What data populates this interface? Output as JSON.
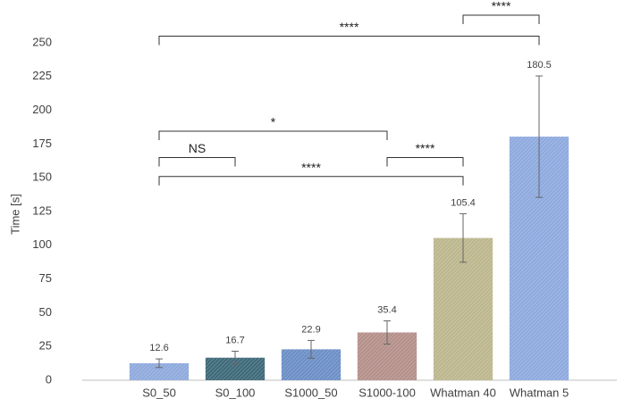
{
  "chart_data": {
    "type": "bar",
    "y_label": "Time [s]",
    "categories": [
      "S0_50",
      "S0_100",
      "S1000_50",
      "S1000-100",
      "Whatman 40",
      "Whatman 5"
    ],
    "values": [
      12.6,
      16.7,
      22.9,
      35.4,
      105.4,
      180.5
    ],
    "errors": [
      3.2,
      4.8,
      6.6,
      8.6,
      18,
      45
    ],
    "colors": [
      "#8faadc",
      "#3f6a7a",
      "#6c8fc6",
      "#b5908a",
      "#bdb78e",
      "#8eaadf"
    ],
    "ylim": [
      0,
      250
    ],
    "yticks": [
      0,
      25,
      50,
      75,
      100,
      125,
      150,
      175,
      200,
      225,
      250
    ],
    "grid": false,
    "brackets": [
      {
        "label": "****",
        "from": 0,
        "to": 5,
        "y": 255
      },
      {
        "label": "****",
        "from": 4,
        "to": 5,
        "y": 270.5
      },
      {
        "label": "*",
        "from": 0,
        "to": 3,
        "y": 184.5
      },
      {
        "label": "NS",
        "from": 0,
        "to": 1,
        "y": 165
      },
      {
        "label": "****",
        "from": 3,
        "to": 4,
        "y": 165
      },
      {
        "label": "****",
        "from": 0,
        "to": 4,
        "y": 151
      }
    ]
  }
}
